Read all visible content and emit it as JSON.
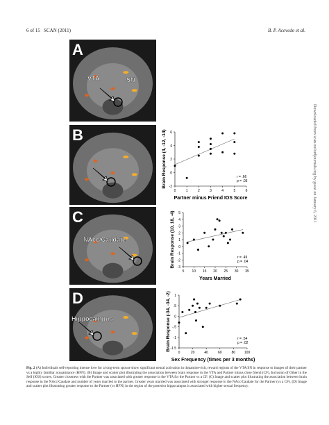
{
  "header": {
    "page": "6 of 15",
    "journal": "SCAN (2011)",
    "authors": "B. P. Acevedo et al."
  },
  "side_note": "Downloaded from scan.oxfordjournals.org by guest on January 6, 2011",
  "panels": [
    {
      "letter": "A",
      "labels": [
        "VTA",
        "SN"
      ]
    },
    {
      "letter": "B",
      "plot": {
        "ylabel": "Brain Response (4, -12, -14)",
        "xlabel": "Partner minus Friend IOS Score",
        "stats": [
          "r = .66",
          "p = .03"
        ],
        "x": [
          0,
          1,
          2,
          2,
          2,
          3,
          3,
          3,
          3,
          4,
          4,
          5,
          5,
          5
        ],
        "y": [
          1,
          -0.8,
          3.8,
          4.5,
          2.5,
          3.5,
          4.2,
          2.8,
          5,
          5.8,
          3,
          4.5,
          5.8,
          2.8
        ],
        "xlim": [
          0,
          6
        ],
        "ylim": [
          -2,
          6
        ],
        "xticks": [
          0,
          1,
          2,
          3,
          4,
          5,
          6
        ],
        "yticks": [
          -2,
          0,
          2,
          4,
          6
        ]
      }
    },
    {
      "letter": "C",
      "labels": [
        "NAcc/Caudate"
      ],
      "plot": {
        "ylabel": "Brain Response (10, 18, -4)",
        "xlabel": "Years Married",
        "stats": [
          "r = .49",
          "p = .04"
        ],
        "x": [
          7,
          10,
          12,
          15,
          17,
          19,
          20,
          21,
          22,
          23,
          24,
          25,
          26,
          27,
          28,
          33
        ],
        "y": [
          0.5,
          1,
          -0.5,
          2,
          0,
          1,
          2.5,
          4,
          3.8,
          2,
          1.5,
          2,
          0.5,
          1,
          2.5,
          2
        ],
        "xlim": [
          5,
          35
        ],
        "ylim": [
          -3,
          5
        ],
        "xticks": [
          5,
          10,
          15,
          20,
          25,
          30,
          35
        ],
        "yticks": [
          -3,
          -2,
          -1,
          0,
          1,
          2,
          3,
          4,
          5
        ]
      }
    },
    {
      "letter": "D",
      "labels": [
        "Hippocampus"
      ],
      "plot": {
        "ylabel": "Brain Response (-34, -34, -2)",
        "xlabel": "Sex Frequency (times per 3 months)",
        "stats": [
          "r = .54",
          "p = .02"
        ],
        "x": [
          0,
          5,
          10,
          15,
          20,
          22,
          24,
          25,
          27,
          30,
          35,
          40,
          45,
          60,
          85,
          90
        ],
        "y": [
          -0.3,
          0.2,
          -0.8,
          0.3,
          0.5,
          0.8,
          0.2,
          -0.2,
          0.6,
          0.4,
          -0.5,
          0.4,
          0.6,
          0.5,
          0.6,
          0.8
        ],
        "xlim": [
          0,
          100
        ],
        "ylim": [
          -1.5,
          1
        ],
        "xticks": [
          0,
          20,
          40,
          60,
          80,
          100
        ],
        "yticks": [
          {
            "value": -1.5,
            "label": "-1.5"
          },
          -1,
          {
            "value": -0.5,
            "label": "-.5"
          },
          0,
          {
            "value": 0.5,
            "label": ".5"
          },
          1
        ]
      }
    }
  ],
  "caption": {
    "label": "Fig. 2",
    "text": "(A) Individuals self-reporting intense love for a long-term spouse show significant neural activation in dopamine-rich, reward regions of the VTA/SN in response to images of their partner vs a highly familiar acquaintance (HFN). (B) Image and scatter plot illustrating the association between brain response in the VTA and Partner minus close friend (CF), Inclusion of Other in the Self (IOS) scores. Greater closeness with the Partner was associated with greater response in the VTA for the Partner vs a CF. (C) Image and scatter plot illustrating the association between brain response in the NAcc/Caudate and number of years married to the partner. Greater years married was associated with stronger response in the NAcc/Caudate for the Partner (vs a CF). (D) Image and scatter plot illustrating greater response to the Partner (vs HFN) in the region of the posterior hippocampus is associated with higher sexual frequency."
  }
}
